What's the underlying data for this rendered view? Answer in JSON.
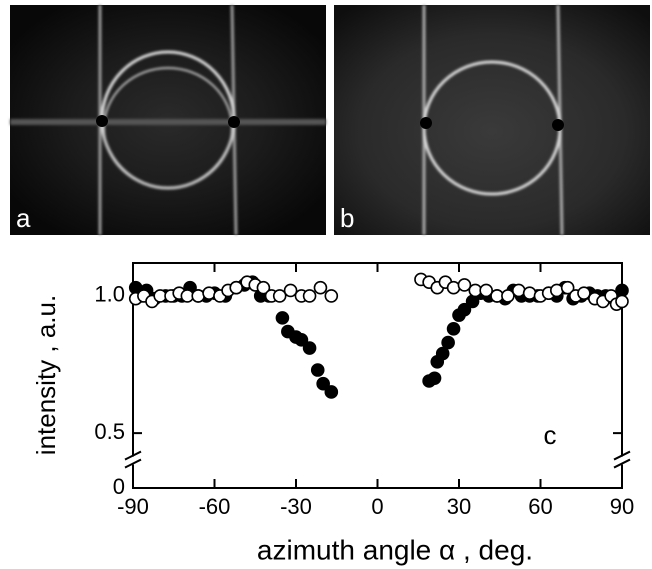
{
  "panels": [
    {
      "label": "a"
    },
    {
      "label": "b"
    }
  ],
  "chart_data": {
    "type": "scatter",
    "annotation": "c",
    "x_label": "azimuth angle α , deg.",
    "y_label": "intensity , a.u.",
    "xlim": [
      -90,
      90
    ],
    "xticks": [
      -90,
      -60,
      -30,
      0,
      30,
      60,
      90
    ],
    "ylim": [
      0,
      1.12
    ],
    "yticks": [
      0,
      0.5,
      {
        "value": 1,
        "label": "1.0"
      }
    ],
    "y_break": [
      0.1,
      0.4
    ],
    "series": [
      {
        "marker": "filled",
        "color": "#000000",
        "x": [
          -89,
          -87,
          -85,
          -82,
          -78,
          -75,
          -72,
          -69,
          -66,
          -63,
          -60,
          -56,
          -52,
          -49,
          -46,
          -43,
          -40,
          -35,
          -33,
          -30,
          -28,
          -25,
          -22,
          -20,
          -17,
          19,
          21,
          22,
          24,
          26,
          28,
          30,
          32,
          35,
          38,
          41,
          44,
          47,
          50,
          53,
          56,
          59,
          63,
          66,
          69,
          72,
          75,
          78,
          81,
          84,
          87,
          90
        ],
        "values": [
          1.03,
          1.0,
          1.02,
          0.99,
          1.0,
          1.0,
          1.0,
          1.03,
          1.0,
          1.0,
          1.01,
          1.0,
          1.03,
          1.04,
          1.05,
          1.0,
          1.0,
          0.92,
          0.87,
          0.85,
          0.84,
          0.81,
          0.73,
          0.68,
          0.65,
          0.69,
          0.7,
          0.76,
          0.79,
          0.83,
          0.88,
          0.93,
          0.95,
          0.98,
          1.01,
          1.0,
          1.0,
          0.99,
          1.02,
          1.0,
          1.0,
          1.0,
          1.01,
          1.0,
          1.03,
          0.99,
          1.0,
          1.01,
          1.0,
          1.0,
          0.99,
          1.02
        ]
      },
      {
        "marker": "open",
        "color": "#000000",
        "x": [
          -89,
          -86,
          -83,
          -80,
          -76,
          -73,
          -70,
          -66,
          -62,
          -58,
          -55,
          -52,
          -48,
          -45,
          -42,
          -39,
          -36,
          -32,
          -28,
          -25,
          -21,
          -17,
          16,
          19,
          22,
          25,
          28,
          32,
          36,
          40,
          44,
          48,
          52,
          56,
          60,
          63,
          66,
          70,
          73,
          76,
          80,
          83,
          86,
          88,
          90
        ],
        "values": [
          0.99,
          1.0,
          0.98,
          1.0,
          1.0,
          1.01,
          1.0,
          1.0,
          1.01,
          1.0,
          1.02,
          1.03,
          1.05,
          1.04,
          1.03,
          1.0,
          1.0,
          1.02,
          1.0,
          1.0,
          1.03,
          1.0,
          1.06,
          1.05,
          1.03,
          1.05,
          1.03,
          1.04,
          1.02,
          1.02,
          1.0,
          1.0,
          1.02,
          1.01,
          1.0,
          1.01,
          1.02,
          1.03,
          1.0,
          1.01,
          0.99,
          0.98,
          1.0,
          0.97,
          0.98
        ]
      }
    ]
  }
}
